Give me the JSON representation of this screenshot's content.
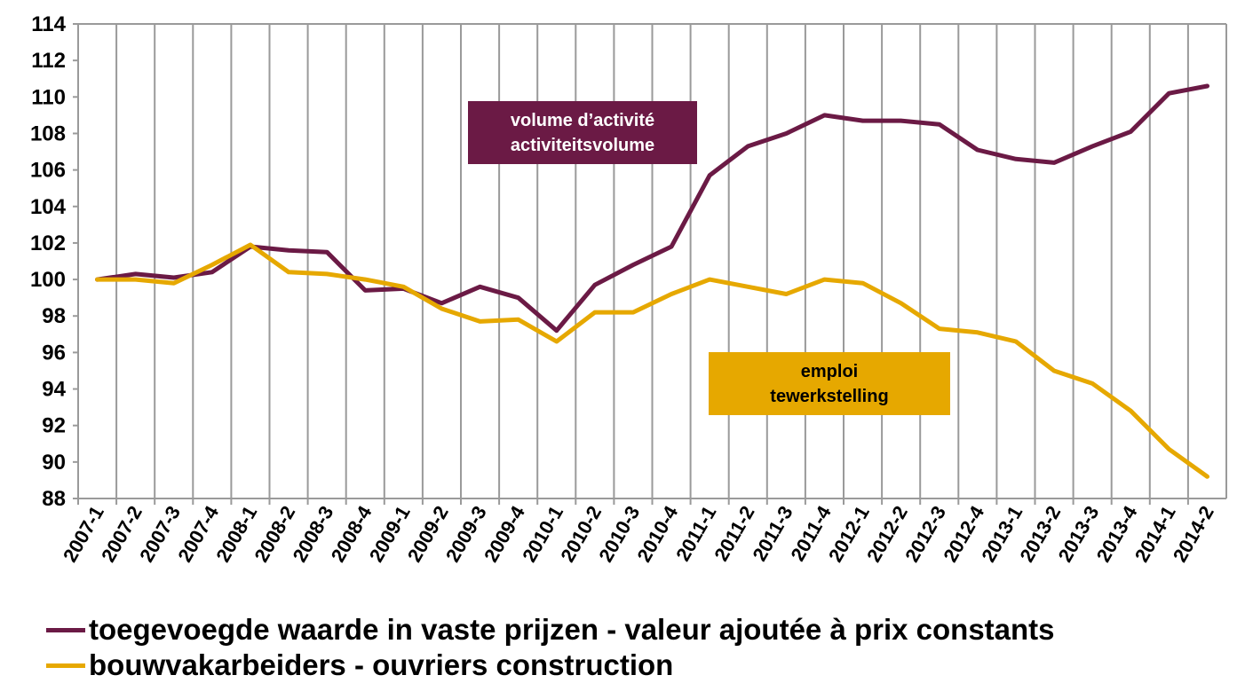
{
  "chart_data": {
    "type": "line",
    "title": "",
    "xlabel": "",
    "ylabel": "",
    "ylim": [
      88,
      114
    ],
    "yticks": [
      88,
      90,
      92,
      94,
      96,
      98,
      100,
      102,
      104,
      106,
      108,
      110,
      112,
      114
    ],
    "grid": "vertical",
    "categories": [
      "2007-1",
      "2007-2",
      "2007-3",
      "2007-4",
      "2008-1",
      "2008-2",
      "2008-3",
      "2008-4",
      "2009-1",
      "2009-2",
      "2009-3",
      "2009-4",
      "2010-1",
      "2010-2",
      "2010-3",
      "2010-4",
      "2011-1",
      "2011-2",
      "2011-3",
      "2011-4",
      "2012-1",
      "2012-2",
      "2012-3",
      "2012-4",
      "2013-1",
      "2013-2",
      "2013-3",
      "2013-4",
      "2014-1",
      "2014-2"
    ],
    "series": [
      {
        "name": "toegevoegde waarde in vaste prijzen - valeur ajoutée à prix constants",
        "color": "#6b1a45",
        "values": [
          100,
          100.3,
          100.1,
          100.4,
          101.8,
          101.6,
          101.5,
          99.4,
          99.5,
          98.7,
          99.6,
          99.0,
          97.2,
          99.7,
          100.8,
          101.8,
          105.7,
          107.3,
          108.0,
          109.0,
          108.7,
          108.7,
          108.5,
          107.1,
          106.6,
          106.4,
          107.3,
          108.1,
          110.2,
          110.6
        ]
      },
      {
        "name": "bouwvakarbeiders - ouvriers construction",
        "color": "#e6a800",
        "values": [
          100,
          100,
          99.8,
          100.8,
          101.9,
          100.4,
          100.3,
          100.0,
          99.6,
          98.4,
          97.7,
          97.8,
          96.6,
          98.2,
          98.2,
          99.2,
          100.0,
          99.6,
          99.2,
          100.0,
          99.8,
          98.7,
          97.3,
          97.1,
          96.6,
          95.0,
          94.3,
          92.8,
          90.7,
          89.2
        ]
      }
    ],
    "annotations": [
      {
        "lines": [
          "volume d’activité",
          "activiteitsvolume"
        ],
        "bg": "#6b1a45",
        "text_color": "#ffffff"
      },
      {
        "lines": [
          "emploi",
          "tewerkstelling"
        ],
        "bg": "#e6a800",
        "text_color": "#000000"
      }
    ],
    "legend_position": "bottom-left"
  },
  "legend": {
    "items": [
      {
        "label": "toegevoegde waarde in vaste prijzen - valeur ajoutée à prix constants",
        "color": "#6b1a45"
      },
      {
        "label": "bouwvakarbeiders - ouvriers construction",
        "color": "#e6a800"
      }
    ]
  }
}
